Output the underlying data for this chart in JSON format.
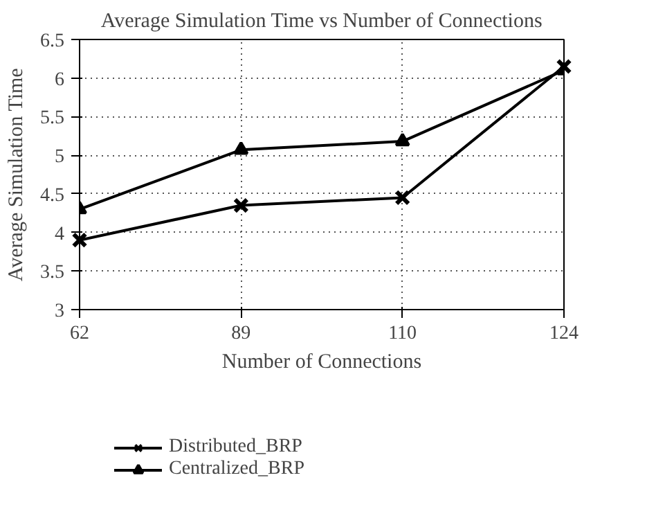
{
  "chart_data": {
    "type": "line",
    "title": "Average Simulation Time vs Number of Connections",
    "xlabel": "Number of Connections",
    "ylabel": "Average Simulation Time",
    "categories": [
      "62",
      "89",
      "110",
      "124"
    ],
    "series": [
      {
        "name": "Distributed_BRP",
        "color": "#000000",
        "marker": "cross",
        "values": [
          3.9,
          4.35,
          4.45,
          6.15
        ]
      },
      {
        "name": "Centralized_BRP",
        "color": "#000000",
        "marker": "triangle",
        "values": [
          4.3,
          5.07,
          5.18,
          6.1
        ]
      }
    ],
    "ylim": [
      3,
      6.5
    ],
    "yticks": [
      3,
      3.5,
      4,
      4.5,
      5,
      5.5,
      6,
      6.5
    ],
    "grid": true,
    "legend": "bottom",
    "line_style": "solid"
  }
}
